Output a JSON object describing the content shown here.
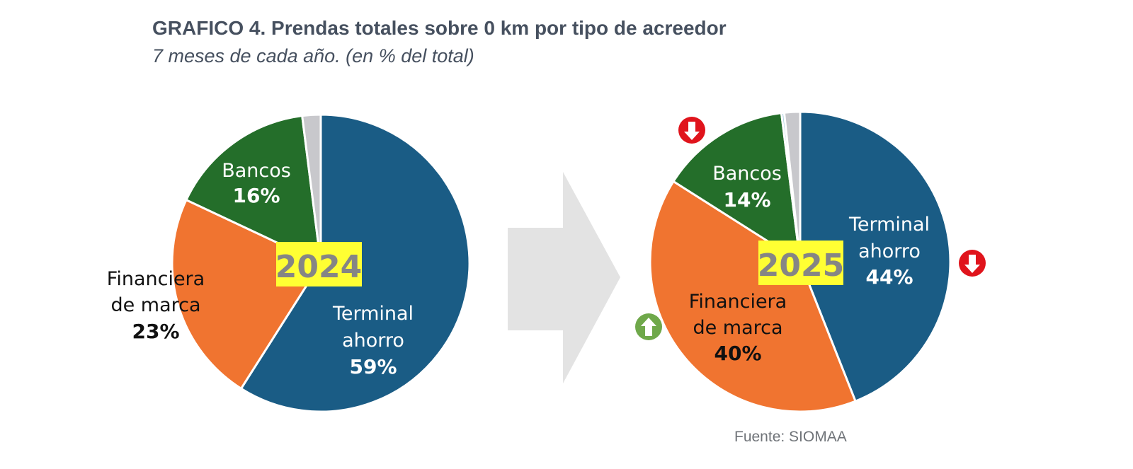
{
  "header": {
    "title": "GRAFICO 4. Prendas totales sobre 0 km por tipo de acreedor",
    "subtitle": "7 meses de cada año. (en % del total)"
  },
  "footer": {
    "source": "Fuente: SIOMAA"
  },
  "colors": {
    "terminal": "#1a5c85",
    "financiera": "#f07430",
    "bancos": "#246e2a",
    "otros": "#c8c8cc",
    "otros2": "#9fc8dc",
    "badge_bg": "#ffff33",
    "arrow_down": "#e0141c",
    "arrow_up": "#6fa84a",
    "transition_arrow": "#e3e3e3"
  },
  "chart_data": [
    {
      "type": "pie",
      "year_label": "2024",
      "slices": [
        {
          "key": "terminal",
          "label_lines": [
            "Terminal",
            "ahorro"
          ],
          "pct_label": "59%",
          "value": 59
        },
        {
          "key": "financiera",
          "label_lines": [
            "Financiera",
            "de marca"
          ],
          "pct_label": "23%",
          "value": 23
        },
        {
          "key": "bancos",
          "label_lines": [
            "Bancos"
          ],
          "pct_label": "16%",
          "value": 16
        },
        {
          "key": "otros",
          "label_lines": [],
          "pct_label": "",
          "value": 2
        }
      ]
    },
    {
      "type": "pie",
      "year_label": "2025",
      "slices": [
        {
          "key": "terminal",
          "label_lines": [
            "Terminal",
            "ahorro"
          ],
          "pct_label": "44%",
          "value": 44,
          "trend": "down"
        },
        {
          "key": "financiera",
          "label_lines": [
            "Financiera",
            "de marca"
          ],
          "pct_label": "40%",
          "value": 40,
          "trend": "up"
        },
        {
          "key": "bancos",
          "label_lines": [
            "Bancos"
          ],
          "pct_label": "14%",
          "value": 14,
          "trend": "down"
        },
        {
          "key": "otros2",
          "label_lines": [],
          "pct_label": "",
          "value": 0.3
        },
        {
          "key": "otros",
          "label_lines": [],
          "pct_label": "",
          "value": 1.7
        }
      ]
    }
  ]
}
